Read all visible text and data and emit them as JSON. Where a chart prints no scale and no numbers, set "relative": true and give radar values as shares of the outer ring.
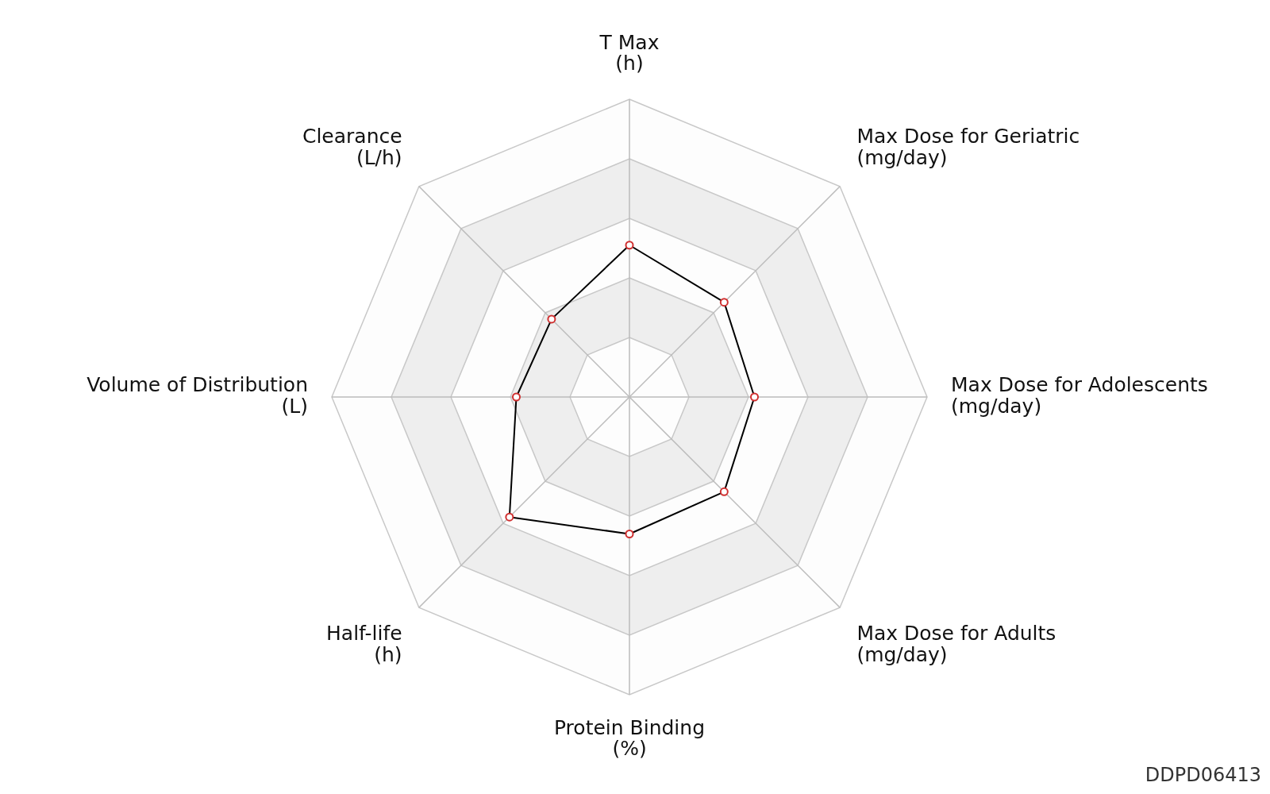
{
  "chart_data": {
    "type": "radar",
    "categories": [
      "T Max\n(h)",
      "Max Dose for Geriatric\n(mg/day)",
      "Max Dose for Adolescents\n(mg/day)",
      "Max Dose for Adults\n(mg/day)",
      "Protein Binding\n(%)",
      "Half-life\n(h)",
      "Volume of Distribution\n(L)",
      "Clearance\n(L/h)"
    ],
    "series": [
      {
        "color": "#000000",
        "values": [
          0.51,
          0.45,
          0.42,
          0.45,
          0.46,
          0.57,
          0.38,
          0.37
        ]
      }
    ],
    "relative": true,
    "grid": true,
    "marker": "circle",
    "line_style": "solid",
    "annotations": [
      "DDPD06413"
    ]
  }
}
